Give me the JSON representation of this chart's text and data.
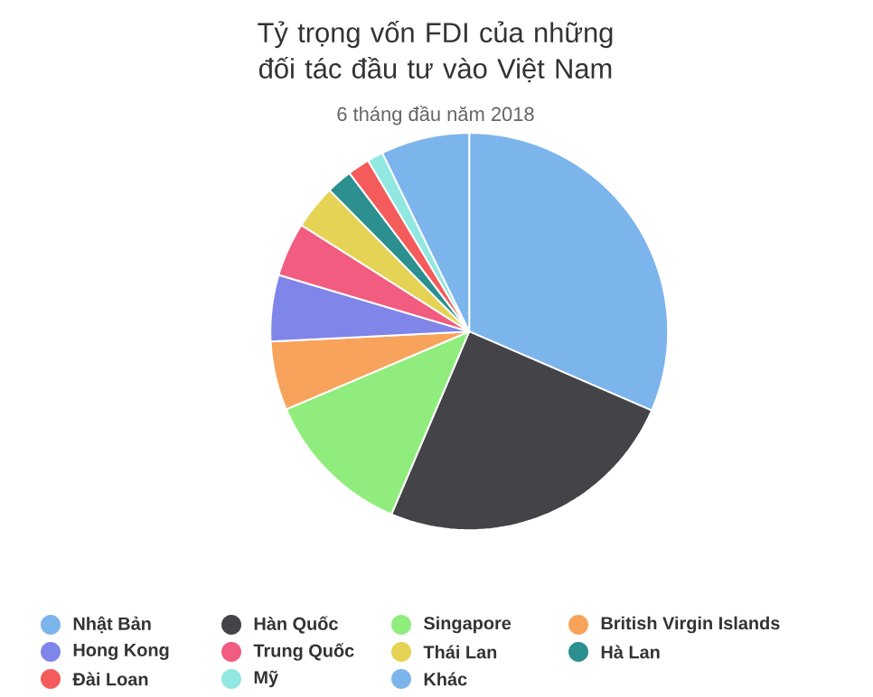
{
  "chart_data": {
    "type": "pie",
    "title": "Tỷ trọng vốn FDI của những đối tác đầu tư vào Việt Nam",
    "subtitle": "6 tháng đầu năm 2018",
    "categories": [
      "Nhật Bản",
      "Hàn Quốc",
      "Singapore",
      "British Virgin Islands",
      "Hong Kong",
      "Trung Quốc",
      "Thái Lan",
      "Hà Lan",
      "Đài Loan",
      "Mỹ",
      "Khác"
    ],
    "values": [
      31.5,
      24.9,
      12.2,
      5.6,
      5.4,
      4.4,
      3.6,
      2.1,
      1.8,
      1.3,
      7.2
    ],
    "colors": [
      "#7cb5ec",
      "#434348",
      "#90ed7d",
      "#f7a35c",
      "#8085e9",
      "#f15c80",
      "#e4d354",
      "#2b908f",
      "#f45b5b",
      "#91e8e1",
      "#7cb5ec"
    ],
    "legend": "bottom"
  }
}
